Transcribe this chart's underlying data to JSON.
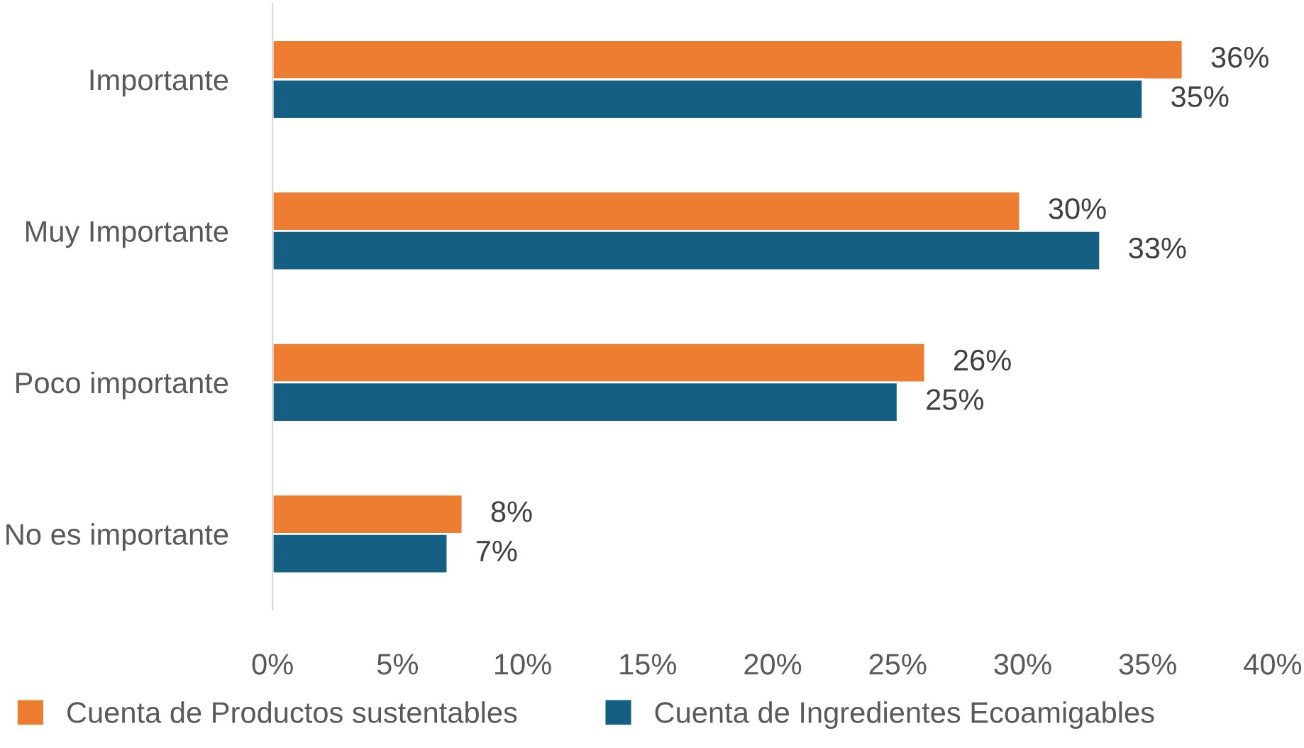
{
  "chart_data": {
    "type": "bar",
    "orientation": "horizontal",
    "categories": [
      "Importante",
      "Muy Importante",
      "Poco importante",
      "No es importante"
    ],
    "series": [
      {
        "name": "Cuenta de Productos sustentables",
        "color": "#ed7d31",
        "values": [
          36.4,
          29.9,
          26.1,
          7.6
        ],
        "value_labels": [
          "36%",
          "30%",
          "26%",
          "8%"
        ]
      },
      {
        "name": "Cuenta de Ingredientes Ecoamigables",
        "color": "#156082",
        "values": [
          34.8,
          33.1,
          25.0,
          7.0
        ],
        "value_labels": [
          "35%",
          "33%",
          "25%",
          "7%"
        ]
      }
    ],
    "xlim": [
      0,
      40
    ],
    "xticks": [
      {
        "value": 0,
        "label": "0%"
      },
      {
        "value": 5,
        "label": "5%"
      },
      {
        "value": 10,
        "label": "10%"
      },
      {
        "value": 15,
        "label": "15%"
      },
      {
        "value": 20,
        "label": "20%"
      },
      {
        "value": 25,
        "label": "25%"
      },
      {
        "value": 30,
        "label": "30%"
      },
      {
        "value": 35,
        "label": "35%"
      },
      {
        "value": 40,
        "label": "40%"
      }
    ],
    "grid": false,
    "legend": "bottom"
  }
}
